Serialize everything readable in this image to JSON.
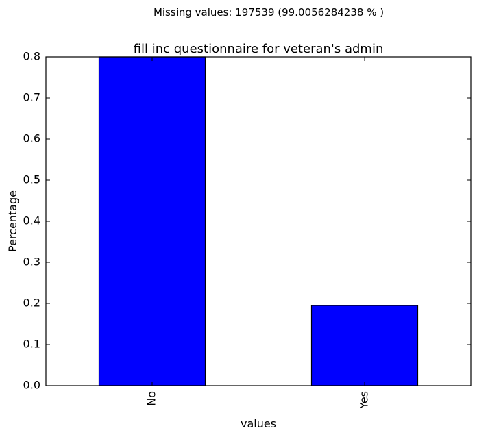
{
  "figure": {
    "suptitle": "Missing values: 197539 (99.0056284238 % )"
  },
  "chart_data": {
    "type": "bar",
    "title": "fill inc questionnaire for veteran's admin",
    "xlabel": "values",
    "ylabel": "Percentage",
    "categories": [
      "No",
      "Yes"
    ],
    "values": [
      0.8,
      0.195
    ],
    "ylim": [
      0,
      0.8
    ],
    "yticks": [
      "0.0",
      "0.1",
      "0.2",
      "0.3",
      "0.4",
      "0.5",
      "0.6",
      "0.7",
      "0.8"
    ],
    "grid": false,
    "legend": "none",
    "bar_color": "#0000ff",
    "edge_color": "#000000"
  }
}
